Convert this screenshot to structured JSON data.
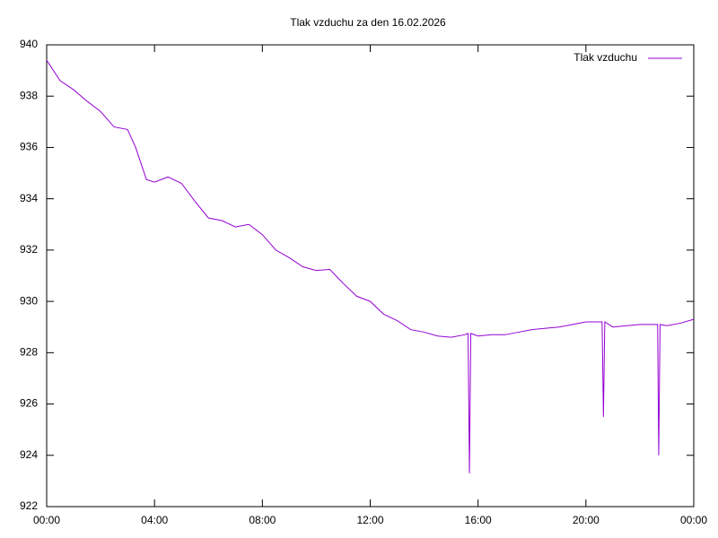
{
  "chart_data": {
    "type": "line",
    "title": "Tlak vzduchu za den 16.02.2026",
    "x": [
      0,
      0.5,
      1,
      1.5,
      2,
      2.5,
      3,
      3.3,
      3.7,
      4,
      4.5,
      5,
      5.5,
      6,
      6.5,
      7,
      7.5,
      8,
      8.5,
      9,
      9.5,
      10,
      10.5,
      11,
      11.5,
      12,
      12.5,
      13,
      13.5,
      14,
      14.5,
      15,
      15.5,
      15.63,
      15.68,
      15.73,
      16,
      16.5,
      17,
      17.5,
      18,
      18.5,
      19,
      19.5,
      20,
      20.5,
      20.6,
      20.65,
      20.7,
      21,
      21.5,
      22,
      22.5,
      22.66,
      22.7,
      22.75,
      23,
      23.5,
      24
    ],
    "series": [
      {
        "name": "Tlak vzduchu",
        "color": "#9400d3",
        "values": [
          939.4,
          938.6,
          938.25,
          937.8,
          937.4,
          936.8,
          936.7,
          936.0,
          934.75,
          934.65,
          934.85,
          934.6,
          933.9,
          933.25,
          933.15,
          932.9,
          933.0,
          932.6,
          932.0,
          931.7,
          931.35,
          931.2,
          931.25,
          930.7,
          930.2,
          930.0,
          929.5,
          929.25,
          928.9,
          928.8,
          928.65,
          928.6,
          928.7,
          928.75,
          923.3,
          928.75,
          928.65,
          928.7,
          928.7,
          928.8,
          928.9,
          928.95,
          929.0,
          929.1,
          929.2,
          929.2,
          929.2,
          925.5,
          929.2,
          929.0,
          929.05,
          929.1,
          929.1,
          929.1,
          924.0,
          929.1,
          929.05,
          929.15,
          929.3
        ]
      }
    ],
    "xlim": [
      0,
      24
    ],
    "xticks": [
      {
        "value": 0,
        "label": "00:00"
      },
      {
        "value": 4,
        "label": "04:00"
      },
      {
        "value": 8,
        "label": "08:00"
      },
      {
        "value": 12,
        "label": "12:00"
      },
      {
        "value": 16,
        "label": "16:00"
      },
      {
        "value": 20,
        "label": "20:00"
      },
      {
        "value": 24,
        "label": "00:00"
      }
    ],
    "ylim": [
      922,
      940
    ],
    "yticks": [
      922,
      924,
      926,
      928,
      930,
      932,
      934,
      936,
      938,
      940
    ],
    "legend": "top-right",
    "grid": false
  }
}
